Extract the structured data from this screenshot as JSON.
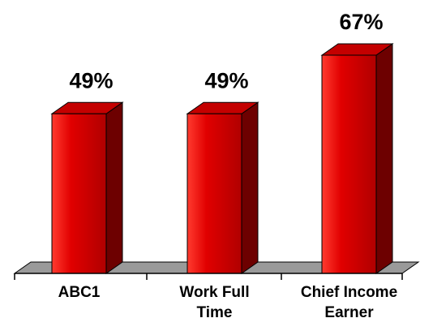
{
  "chart_data": {
    "type": "bar",
    "style": "3d-column",
    "categories": [
      [
        "ABC1"
      ],
      [
        "Work Full",
        "Time"
      ],
      [
        "Chief Income",
        "Earner"
      ]
    ],
    "values": [
      49,
      49,
      67
    ],
    "value_labels": [
      "49%",
      "49%",
      "67%"
    ],
    "ylim": [
      0,
      67
    ],
    "grid": false,
    "legend": "none",
    "colors": {
      "bar_front_light": "#ff3b2f",
      "bar_front_mid": "#e10000",
      "bar_front_dark": "#b00000",
      "bar_side": "#6d0000",
      "bar_top": "#c40000",
      "floor": "#9a9a9a",
      "axis": "#000000",
      "text": "#000000"
    }
  }
}
